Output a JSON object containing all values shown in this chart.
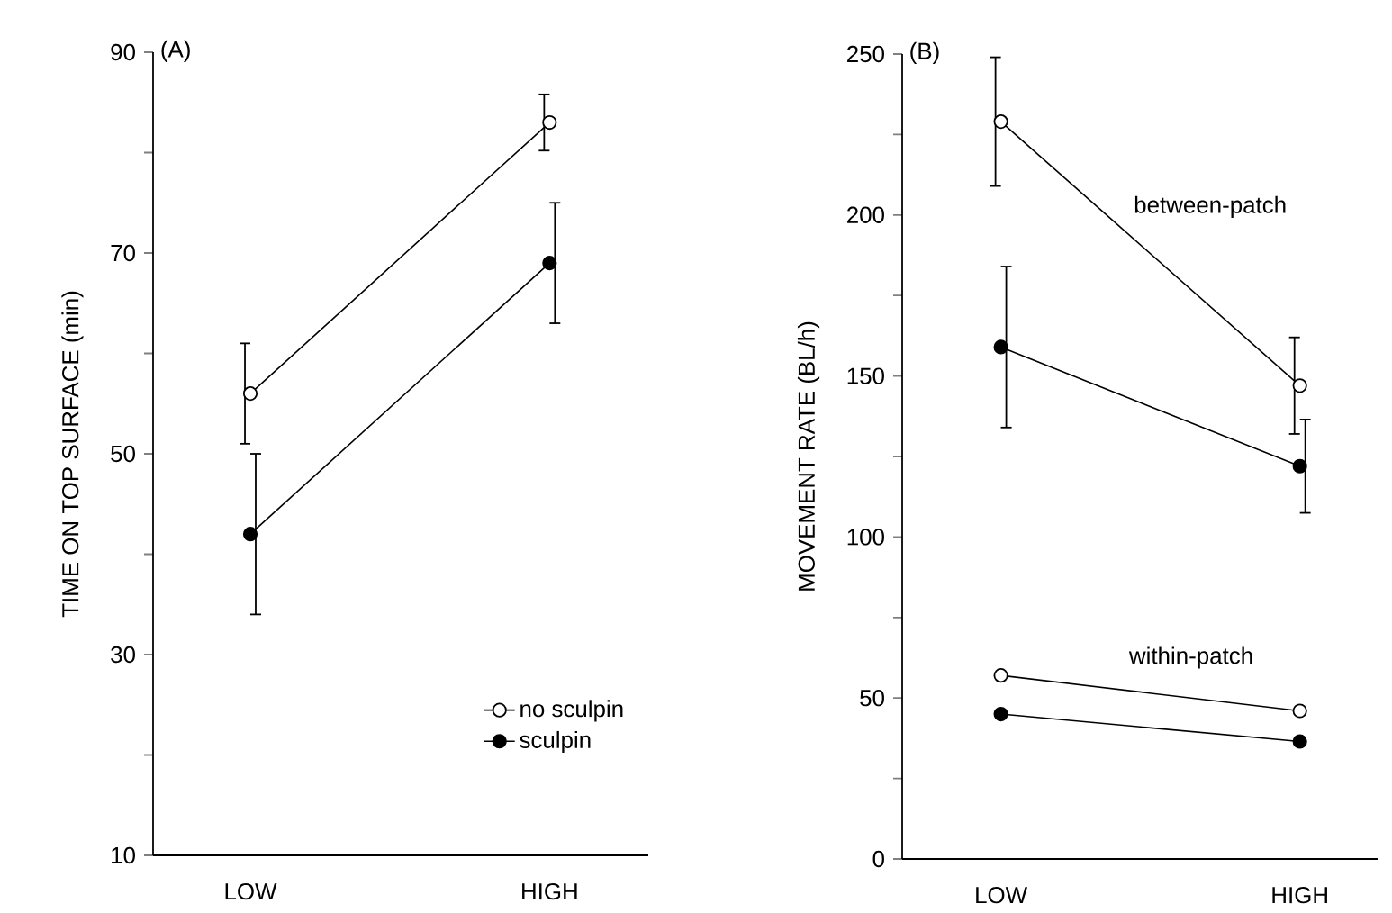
{
  "chart_data": [
    {
      "type": "line",
      "title": "(A)",
      "ylabel": "TIME ON TOP SURFACE (min)",
      "categories": [
        "LOW",
        "HIGH"
      ],
      "ylim": [
        10,
        90
      ],
      "yticks": [
        10,
        {
          "value": 20,
          "label": null
        },
        30,
        {
          "value": 40,
          "label": null
        },
        50,
        {
          "value": 60,
          "label": null
        },
        70,
        {
          "value": 80,
          "label": null
        },
        90
      ],
      "marker": "circle",
      "legend": "bottom right",
      "series": [
        {
          "name": "no sculpin",
          "color": "#000000",
          "values": [
            56,
            83
          ],
          "errors": [
            5,
            2.8
          ]
        },
        {
          "name": "sculpin",
          "color": "#000000",
          "values": [
            42,
            69
          ],
          "errors": [
            8,
            6
          ]
        }
      ]
    },
    {
      "type": "line",
      "title": "(B)",
      "ylabel": "MOVEMENT RATE (BL/h)",
      "categories": [
        "LOW",
        "HIGH"
      ],
      "ylim": [
        0,
        250
      ],
      "yticks": [
        0,
        {
          "value": 25,
          "label": null
        },
        50,
        {
          "value": 75,
          "label": null
        },
        100,
        {
          "value": 125,
          "label": null
        },
        150,
        {
          "value": 175,
          "label": null
        },
        200,
        {
          "value": 225,
          "label": null
        },
        250
      ],
      "marker": "circle",
      "annotations": [
        "between-patch",
        "within-patch"
      ],
      "series": [
        {
          "color": "#000000",
          "values": [
            229,
            147
          ],
          "errors": [
            20,
            15
          ]
        },
        {
          "color": "#000000",
          "values": [
            159,
            122
          ],
          "errors": [
            25,
            14.5
          ]
        },
        {
          "color": "#000000",
          "values": [
            57,
            46
          ]
        },
        {
          "color": "#000000",
          "values": [
            45,
            36.5
          ]
        }
      ]
    }
  ]
}
